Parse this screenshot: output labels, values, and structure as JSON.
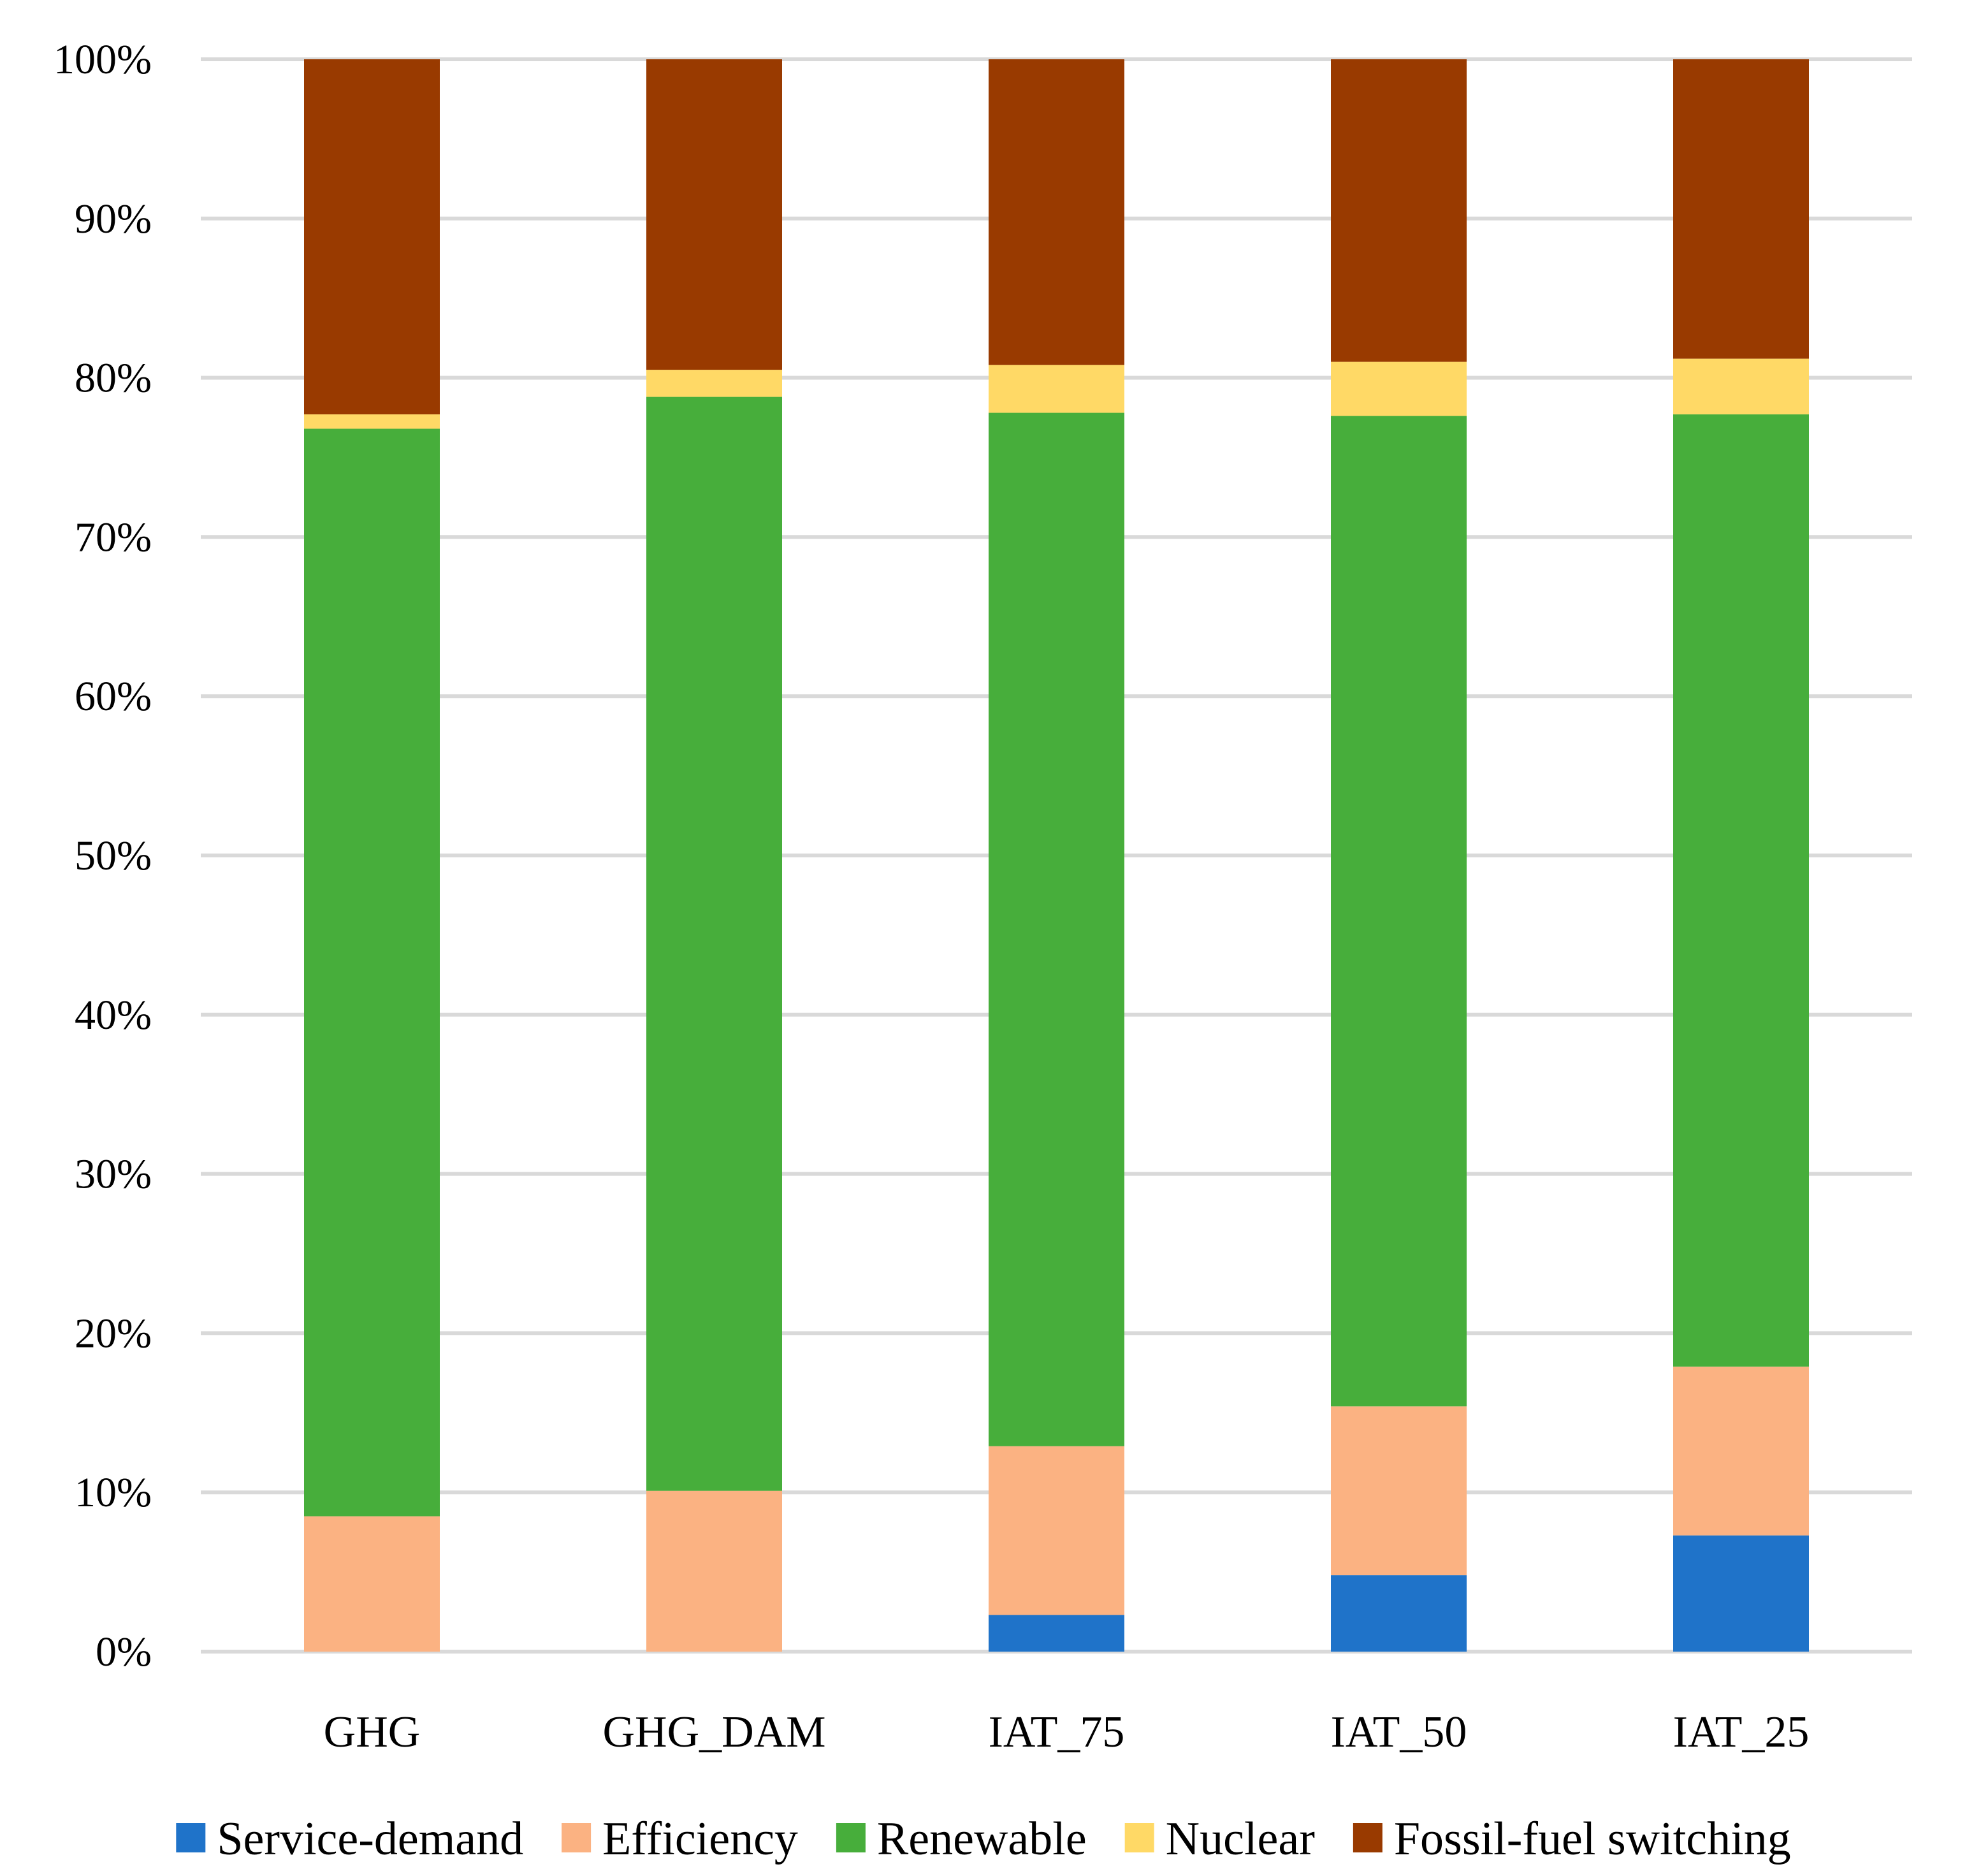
{
  "chart_data": {
    "type": "bar",
    "stacked": true,
    "title": "",
    "xlabel": "",
    "ylabel": "",
    "ylim": [
      0,
      100
    ],
    "y_ticks": [
      "0%",
      "10%",
      "20%",
      "30%",
      "40%",
      "50%",
      "60%",
      "70%",
      "80%",
      "90%",
      "100%"
    ],
    "grid": true,
    "legend_position": "bottom",
    "categories": [
      "GHG",
      "GHG_DAM",
      "IAT_75",
      "IAT_50",
      "IAT_25"
    ],
    "series": [
      {
        "name": "Service-demand",
        "color": "#1f73c9",
        "values": [
          0,
          0,
          2.3,
          4.8,
          7.3
        ]
      },
      {
        "name": "Efficiency",
        "color": "#fbb282",
        "values": [
          8.5,
          10.1,
          10.6,
          10.6,
          10.6
        ]
      },
      {
        "name": "Renewable",
        "color": "#47ae3b",
        "values": [
          68.3,
          68.7,
          64.9,
          62.2,
          59.8
        ]
      },
      {
        "name": "Nuclear",
        "color": "#ffd966",
        "values": [
          0.9,
          1.7,
          3.0,
          3.4,
          3.5
        ]
      },
      {
        "name": "Fossil-fuel switching",
        "color": "#993a00",
        "values": [
          22.3,
          19.5,
          19.2,
          19.0,
          18.8
        ]
      }
    ]
  }
}
